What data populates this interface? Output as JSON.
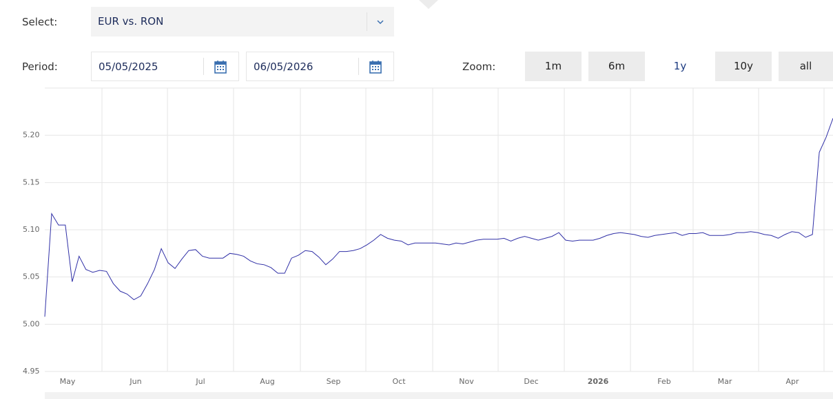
{
  "form": {
    "select_label": "Select:",
    "select_value": "EUR vs. RON",
    "period_label": "Period:",
    "date_from": "05/05/2025",
    "date_to": "06/05/2026",
    "zoom_label": "Zoom:",
    "zoom_buttons": [
      "1m",
      "6m",
      "1y",
      "10y",
      "all"
    ],
    "active_zoom_index": 2
  },
  "chart_data": {
    "type": "line",
    "x_labels": [
      "May",
      "Jun",
      "Jul",
      "Aug",
      "Sep",
      "Oct",
      "Nov",
      "Dec",
      "2026",
      "Feb",
      "Mar",
      "Apr"
    ],
    "series": [
      {
        "color": "#2f2fa6",
        "values": [
          5.008,
          5.117,
          5.105,
          5.105,
          5.045,
          5.072,
          5.058,
          5.055,
          5.057,
          5.056,
          5.043,
          5.035,
          5.032,
          5.026,
          5.03,
          5.043,
          5.058,
          5.08,
          5.065,
          5.059,
          5.069,
          5.078,
          5.079,
          5.072,
          5.07,
          5.07,
          5.07,
          5.075,
          5.074,
          5.072,
          5.067,
          5.064,
          5.063,
          5.06,
          5.054,
          5.054,
          5.07,
          5.073,
          5.078,
          5.077,
          5.071,
          5.063,
          5.069,
          5.077,
          5.077,
          5.078,
          5.08,
          5.084,
          5.089,
          5.095,
          5.091,
          5.089,
          5.088,
          5.084,
          5.086,
          5.086,
          5.086,
          5.086,
          5.085,
          5.084,
          5.086,
          5.085,
          5.087,
          5.089,
          5.09,
          5.09,
          5.09,
          5.091,
          5.088,
          5.091,
          5.093,
          5.091,
          5.089,
          5.091,
          5.093,
          5.097,
          5.089,
          5.088,
          5.089,
          5.089,
          5.089,
          5.091,
          5.094,
          5.096,
          5.097,
          5.096,
          5.095,
          5.093,
          5.092,
          5.094,
          5.095,
          5.096,
          5.097,
          5.094,
          5.096,
          5.096,
          5.097,
          5.094,
          5.094,
          5.094,
          5.095,
          5.097,
          5.097,
          5.098,
          5.097,
          5.095,
          5.094,
          5.091,
          5.095,
          5.098,
          5.097,
          5.092,
          5.095,
          5.182,
          5.198,
          5.218
        ]
      }
    ],
    "ylim": [
      4.95,
      5.25
    ],
    "yticks": [
      4.95,
      {
        "value": 5,
        "label": "5.00"
      },
      5.05,
      {
        "value": 5.1,
        "label": "5.10"
      },
      5.15,
      {
        "value": 5.2,
        "label": "5.20"
      }
    ],
    "grid": true
  }
}
